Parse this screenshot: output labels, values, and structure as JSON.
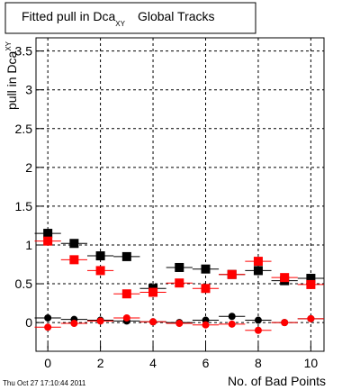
{
  "chart_data": {
    "type": "scatter",
    "title": {
      "main": "Fitted pull in Dca",
      "sub": "XY",
      "rest": "Global Tracks"
    },
    "y_label": {
      "main": "pull in Dca",
      "sub": "XY"
    },
    "x_label": "No. of Bad Points",
    "footer": "Thu Oct 27 17:10:44 2011",
    "x": [
      0,
      1,
      2,
      3,
      4,
      5,
      6,
      7,
      8,
      9,
      10
    ],
    "xerr": 0.5,
    "series": [
      {
        "color": "#000000",
        "marker": "square",
        "values": [
          1.15,
          1.02,
          0.86,
          0.85,
          0.44,
          0.71,
          0.69,
          0.62,
          0.67,
          0.54,
          0.57
        ]
      },
      {
        "color": "#ff0000",
        "marker": "square",
        "values": [
          1.05,
          0.81,
          0.67,
          0.37,
          0.39,
          0.51,
          0.44,
          0.62,
          0.79,
          0.58,
          0.49
        ]
      },
      {
        "color": "#000000",
        "marker": "circle",
        "values": [
          0.06,
          0.04,
          0.03,
          0.02,
          0.01,
          0.0,
          0.03,
          0.08,
          0.03,
          0.0,
          0.05
        ]
      },
      {
        "color": "#ff0000",
        "marker": "circle",
        "values": [
          -0.06,
          -0.01,
          0.02,
          0.06,
          0.01,
          -0.01,
          -0.03,
          -0.02,
          -0.1,
          0.0,
          0.05
        ]
      }
    ],
    "xlim": [
      -0.45,
      10.5
    ],
    "ylim": [
      -0.37,
      3.67
    ],
    "xticks": [
      0,
      2,
      4,
      6,
      8,
      10
    ],
    "yticks": [
      0,
      0.5,
      1,
      1.5,
      2,
      2.5,
      3,
      3.5
    ],
    "grid": true
  }
}
